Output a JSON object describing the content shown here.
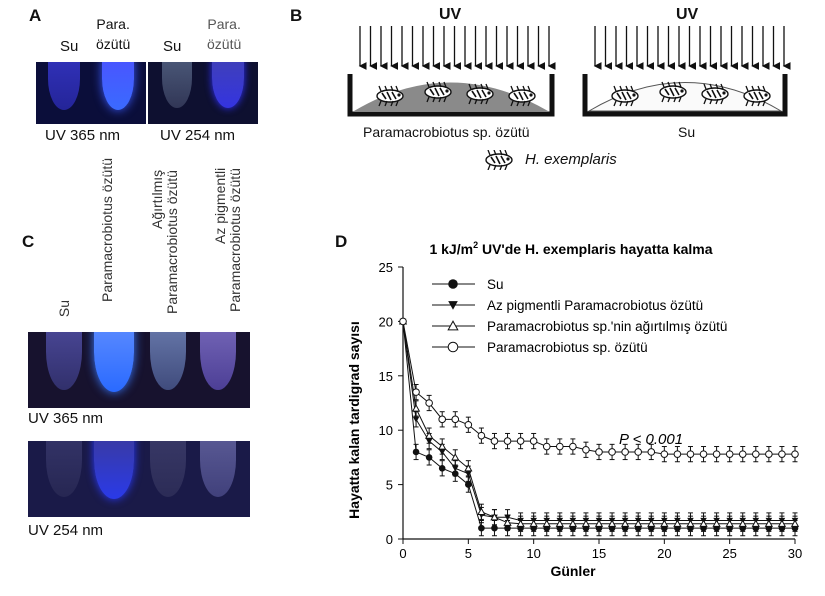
{
  "panelA": {
    "letter": "A",
    "label_su_1": "Su",
    "label_para_1_l1": "Para.",
    "label_para_1_l2": "özütü",
    "label_su_2": "Su",
    "label_para_2_l1": "Para.",
    "label_para_2_l2": "özütü",
    "caption_365": "UV 365 nm",
    "caption_254": "UV 254 nm"
  },
  "panelB": {
    "letter": "B",
    "uv_left": "UV",
    "uv_right": "UV",
    "caption_left": "Paramacrobiotus sp. özütü",
    "caption_right": "Su",
    "legend": "H. exemplaris"
  },
  "panelC": {
    "letter": "C",
    "labels": [
      "Su",
      "Paramacrobiotus özütü",
      "Ağırtılmış Paramacrobiotus özütü",
      "Az pigmentli Paramacrobiotus özütü"
    ],
    "caption_365": "UV 365 nm",
    "caption_254": "UV 254 nm"
  },
  "panelD": {
    "letter": "D"
  },
  "chart_data": {
    "type": "line",
    "title_prefix": "1 kJ/m",
    "title_sup": "2",
    "title_suffix": " UV'de H. exemplaris hayatta kalma",
    "xlabel": "Günler",
    "ylabel": "Hayatta kalan tardigrad sayısı",
    "xlim": [
      0,
      30
    ],
    "ylim": [
      0,
      25
    ],
    "xticks": [
      0,
      5,
      10,
      15,
      20,
      25,
      30
    ],
    "yticks": [
      0,
      5,
      10,
      15,
      20,
      25
    ],
    "legend_position": "top-left",
    "annotation": "P < 0.001",
    "x": [
      0,
      1,
      2,
      3,
      4,
      5,
      6,
      7,
      8,
      9,
      10,
      11,
      12,
      13,
      14,
      15,
      16,
      17,
      18,
      19,
      20,
      21,
      22,
      23,
      24,
      25,
      26,
      27,
      28,
      29,
      30
    ],
    "series": [
      {
        "name": "Su",
        "marker": "filled-circle",
        "values": [
          20,
          8,
          7.5,
          6.5,
          6,
          5,
          1,
          1,
          1,
          1,
          1,
          1,
          1,
          1,
          1,
          1,
          1,
          1,
          1,
          1,
          1,
          1,
          1,
          1,
          1,
          1,
          1,
          1,
          1,
          1,
          1
        ]
      },
      {
        "name": "Az pigmentli Paramacrobiotus özütü",
        "marker": "filled-triangle-down",
        "values": [
          20,
          11,
          9,
          8,
          6.5,
          6,
          2.2,
          2,
          2,
          1.7,
          1.7,
          1.7,
          1.7,
          1.7,
          1.7,
          1.7,
          1.7,
          1.7,
          1.7,
          1.7,
          1.7,
          1.7,
          1.7,
          1.7,
          1.7,
          1.7,
          1.7,
          1.7,
          1.7,
          1.7,
          1.7
        ]
      },
      {
        "name": "Paramacrobiotus sp.'nin ağırtılmış özütü",
        "marker": "open-triangle-up",
        "values": [
          20,
          12,
          9.5,
          8.5,
          7.5,
          6.5,
          2.5,
          2,
          1.5,
          1.4,
          1.4,
          1.4,
          1.4,
          1.4,
          1.4,
          1.4,
          1.4,
          1.4,
          1.4,
          1.4,
          1.4,
          1.4,
          1.4,
          1.4,
          1.4,
          1.4,
          1.4,
          1.4,
          1.4,
          1.4,
          1.4
        ]
      },
      {
        "name": "Paramacrobiotus sp. özütü",
        "marker": "open-circle",
        "values": [
          20,
          13.5,
          12.5,
          11,
          11,
          10.5,
          9.5,
          9,
          9,
          9,
          9,
          8.5,
          8.5,
          8.5,
          8.2,
          8,
          8,
          8,
          8,
          8,
          7.8,
          7.8,
          7.8,
          7.8,
          7.8,
          7.8,
          7.8,
          7.8,
          7.8,
          7.8,
          7.8
        ]
      }
    ]
  }
}
